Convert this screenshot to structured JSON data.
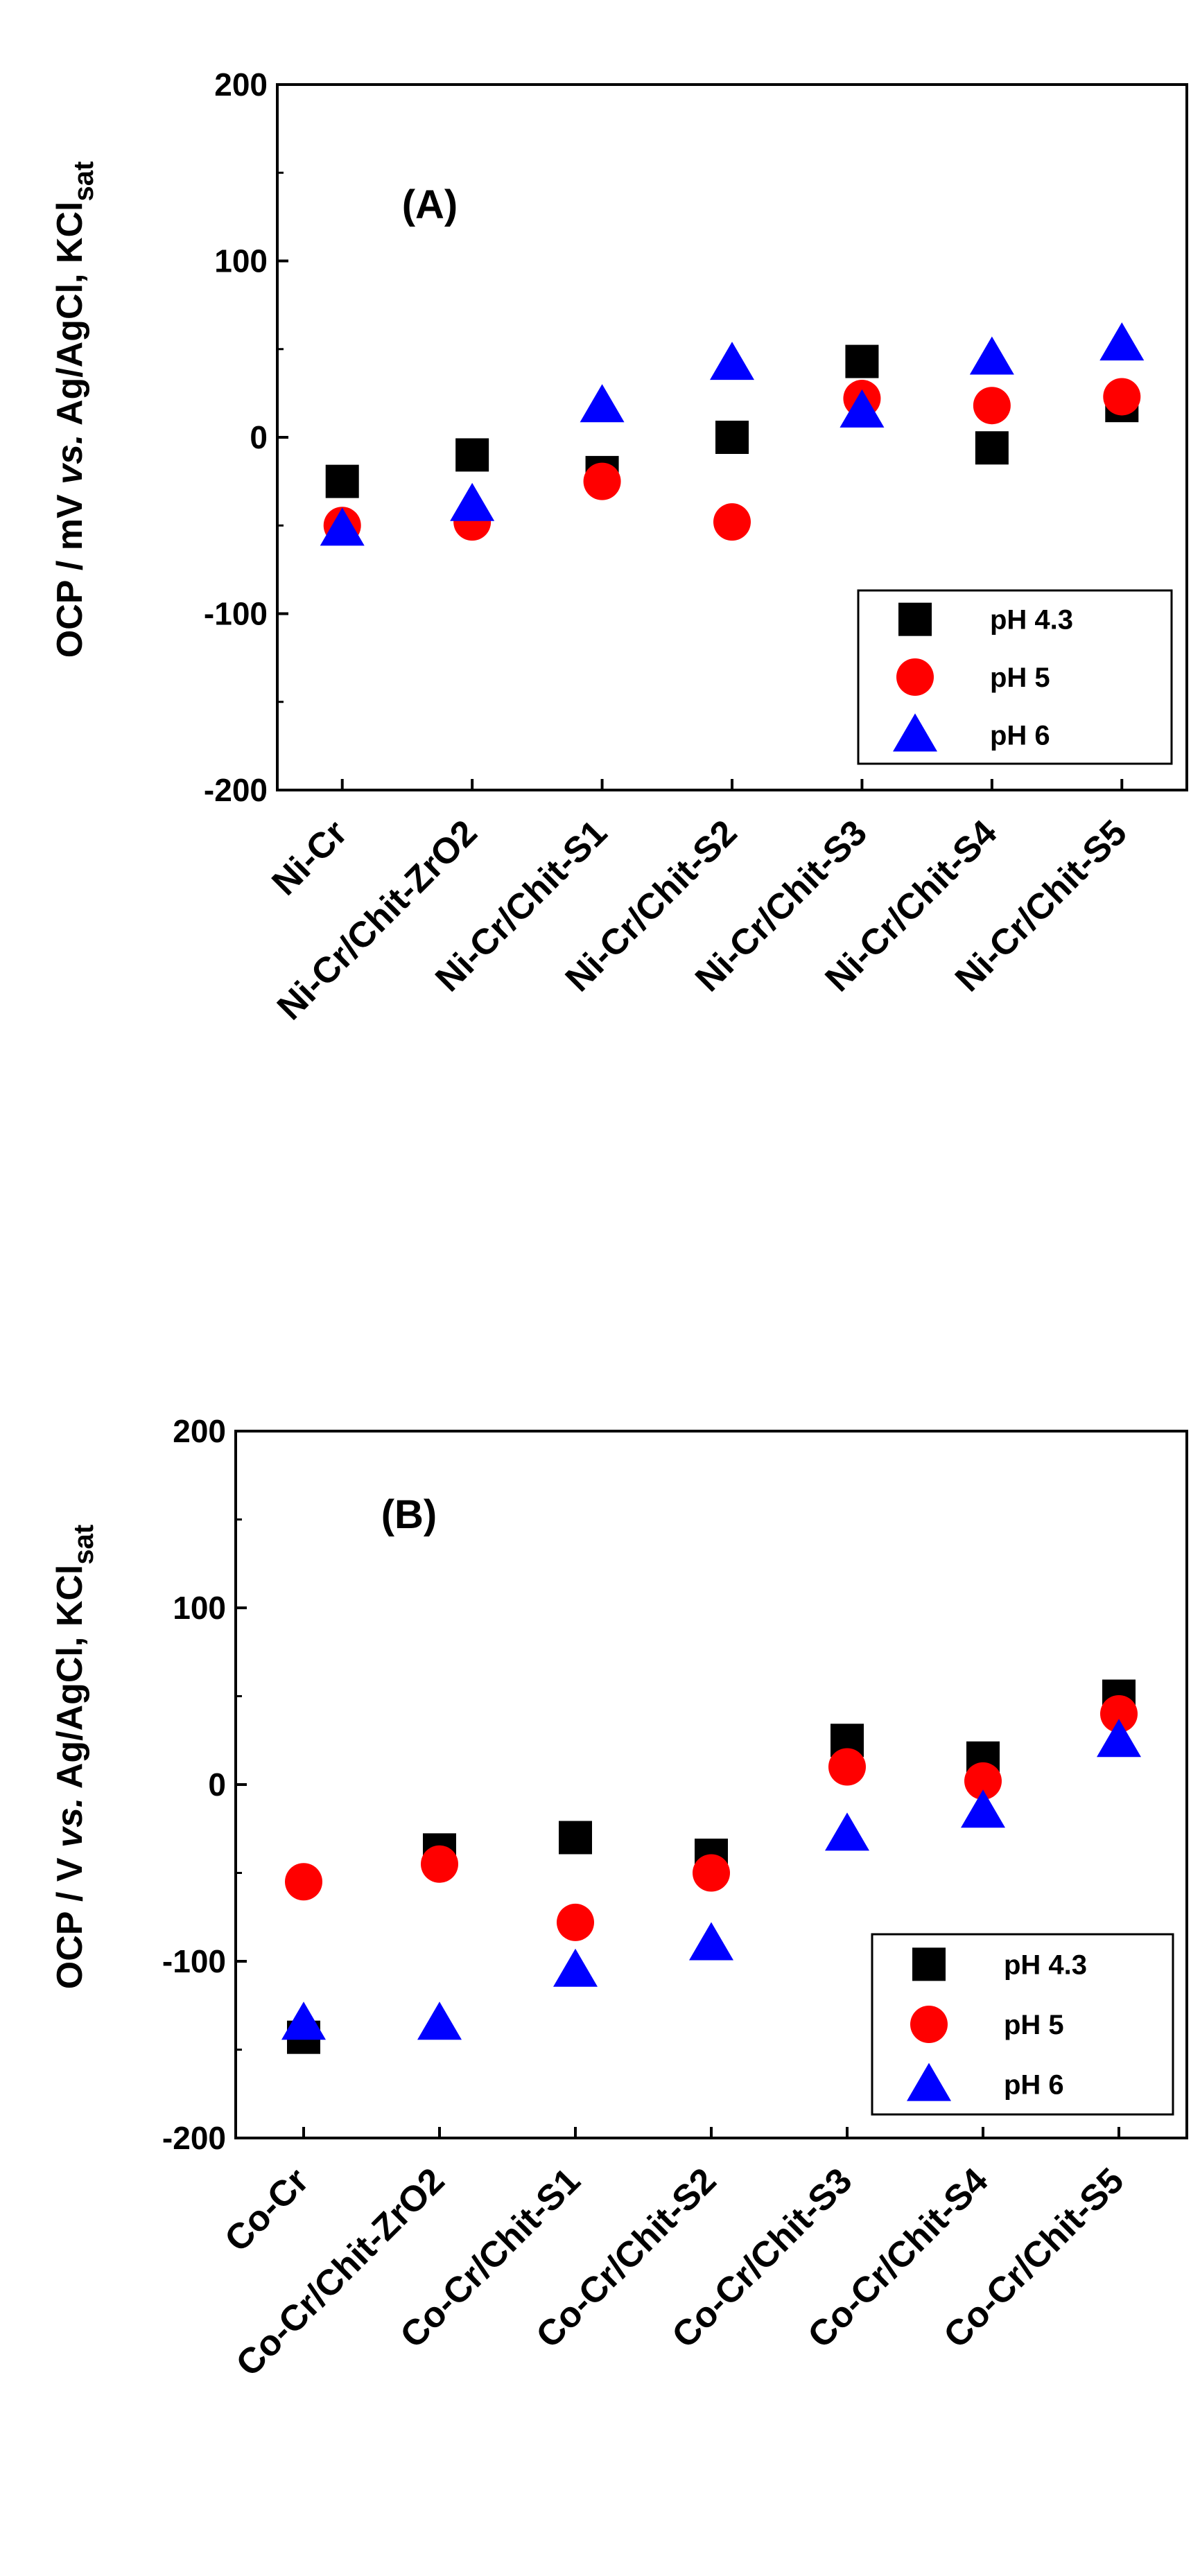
{
  "chart_data": [
    {
      "type": "scatter",
      "panel": "(A)",
      "ylabel": {
        "main": "OCP / mV ",
        "italic": "vs.",
        "rest": " Ag/AgCl, KCl",
        "sub": "sat"
      },
      "ylim": [
        -200,
        200
      ],
      "yticks": [
        200,
        100,
        0,
        -100,
        -200
      ],
      "categories": [
        "Ni-Cr",
        "Ni-Cr/Chit-ZrO2",
        "Ni-Cr/Chit-S1",
        "Ni-Cr/Chit-S2",
        "Ni-Cr/Chit-S3",
        "Ni-Cr/Chit-S4",
        "Ni-Cr/Chit-S5"
      ],
      "legend_position": "lower-right",
      "series": [
        {
          "name": "pH 4.3",
          "marker": "square",
          "color": "#000000",
          "values": [
            -25,
            -10,
            -20,
            0,
            43,
            -6,
            18
          ]
        },
        {
          "name": "pH 5",
          "marker": "circle",
          "color": "#ff0000",
          "values": [
            -50,
            -48,
            -25,
            -48,
            22,
            18,
            23
          ]
        },
        {
          "name": "pH 6",
          "marker": "triangle",
          "color": "#0000ff",
          "values": [
            -52,
            -38,
            18,
            42,
            15,
            45,
            53
          ]
        }
      ]
    },
    {
      "type": "scatter",
      "panel": "(B)",
      "ylabel": {
        "main": "OCP  / V ",
        "italic": "vs.",
        "rest": " Ag/AgCl, KCl",
        "sub": "sat"
      },
      "ylim": [
        -200,
        200
      ],
      "yticks": [
        200,
        100,
        0,
        -100,
        -200
      ],
      "categories": [
        "Co-Cr",
        "Co-Cr/Chit-ZrO2",
        "Co-Cr/Chit-S1",
        "Co-Cr/Chit-S2",
        "Co-Cr/Chit-S3",
        "Co-Cr/Chit-S4",
        "Co-Cr/Chit-S5"
      ],
      "legend_position": "lower-right",
      "series": [
        {
          "name": "pH 4.3",
          "marker": "square",
          "color": "#000000",
          "values": [
            -143,
            -37,
            -30,
            -40,
            25,
            15,
            50
          ]
        },
        {
          "name": "pH 5",
          "marker": "circle",
          "color": "#ff0000",
          "values": [
            -55,
            -45,
            -78,
            -50,
            10,
            2,
            40
          ]
        },
        {
          "name": "pH 6",
          "marker": "triangle",
          "color": "#0000ff",
          "values": [
            -135,
            -135,
            -105,
            -90,
            -28,
            -15,
            25
          ]
        }
      ]
    }
  ]
}
